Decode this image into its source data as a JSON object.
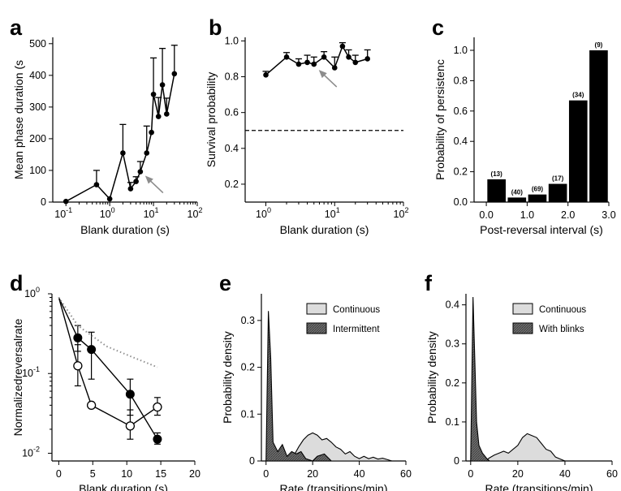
{
  "colors": {
    "ink": "#000000",
    "arrow": "#8c8c8c",
    "dotted": "#909090",
    "continuous_fill": "#dcdcdc",
    "intermittent_fill": "#6e6e6e"
  },
  "chart_data": [
    {
      "panel": "a",
      "type": "line",
      "xlabel": "Blank duration (s)",
      "ylabel": "Mean phase duration (s",
      "xscale": "log",
      "xlim": [
        0.05,
        100
      ],
      "ylim": [
        0,
        520
      ],
      "xticks": [
        {
          "base": "10",
          "exp": "-1"
        },
        {
          "base": "10",
          "exp": "0"
        },
        {
          "base": "10",
          "exp": "1"
        },
        {
          "base": "10",
          "exp": "2"
        }
      ],
      "yticks": [
        "0",
        "100",
        "200",
        "300",
        "400",
        "500"
      ],
      "points": [
        {
          "x": 0.1,
          "y": 2,
          "err": 0
        },
        {
          "x": 0.5,
          "y": 55,
          "err": 45
        },
        {
          "x": 1.0,
          "y": 10,
          "err": 0
        },
        {
          "x": 2.0,
          "y": 155,
          "err": 90
        },
        {
          "x": 3.0,
          "y": 42,
          "err": 20
        },
        {
          "x": 4.0,
          "y": 65,
          "err": 15
        },
        {
          "x": 5.0,
          "y": 96,
          "err": 32
        },
        {
          "x": 7.0,
          "y": 155,
          "err": 85
        },
        {
          "x": 9.0,
          "y": 220,
          "err": 0
        },
        {
          "x": 10.0,
          "y": 340,
          "err": 115
        },
        {
          "x": 13.0,
          "y": 270,
          "err": 60
        },
        {
          "x": 16.0,
          "y": 370,
          "err": 115
        },
        {
          "x": 20.0,
          "y": 278,
          "err": 50
        },
        {
          "x": 30.0,
          "y": 405,
          "err": 90
        }
      ],
      "arrow_at": {
        "x": 5.0,
        "y": 96
      }
    },
    {
      "panel": "b",
      "type": "line",
      "xlabel": "Blank duration (s)",
      "ylabel": "Survival probability",
      "xscale": "log",
      "xlim": [
        0.5,
        100
      ],
      "ylim": [
        0.1,
        1.02
      ],
      "xticks": [
        {
          "base": "10",
          "exp": "0"
        },
        {
          "base": "10",
          "exp": "1"
        },
        {
          "base": "10",
          "exp": "2"
        }
      ],
      "yticks": [
        "0.2",
        "0.4",
        "0.6",
        "0.8",
        "1.0"
      ],
      "points": [
        {
          "x": 1.0,
          "y": 0.81,
          "err": 0.02
        },
        {
          "x": 2.0,
          "y": 0.91,
          "err": 0.025
        },
        {
          "x": 3.0,
          "y": 0.87,
          "err": 0.03
        },
        {
          "x": 4.0,
          "y": 0.88,
          "err": 0.04
        },
        {
          "x": 5.0,
          "y": 0.87,
          "err": 0.04
        },
        {
          "x": 7.0,
          "y": 0.91,
          "err": 0.03
        },
        {
          "x": 10.0,
          "y": 0.85,
          "err": 0.06
        },
        {
          "x": 13.0,
          "y": 0.97,
          "err": 0.02
        },
        {
          "x": 16.0,
          "y": 0.91,
          "err": 0.04
        },
        {
          "x": 20.0,
          "y": 0.88,
          "err": 0.04
        },
        {
          "x": 30.0,
          "y": 0.9,
          "err": 0.05
        }
      ],
      "dashed_y": 0.5,
      "arrow_at": {
        "x": 5.0,
        "y": 0.87
      }
    },
    {
      "panel": "c",
      "type": "bar",
      "xlabel": "Post-reversal interval (s)",
      "ylabel": "Probability of persistenc",
      "xlim": [
        -0.3,
        3.0
      ],
      "ylim": [
        0,
        1.0
      ],
      "xticks": [
        "0.0",
        "1.0",
        "2.0",
        "3.0"
      ],
      "yticks": [
        "0.0",
        "0.2",
        "0.4",
        "0.6",
        "0.8",
        "1.0"
      ],
      "bars": [
        {
          "x": 0.25,
          "value": 0.15,
          "n": "(13)"
        },
        {
          "x": 0.75,
          "value": 0.03,
          "n": "(40)"
        },
        {
          "x": 1.25,
          "value": 0.05,
          "n": "(69)"
        },
        {
          "x": 1.75,
          "value": 0.12,
          "n": "(17)"
        },
        {
          "x": 2.25,
          "value": 0.67,
          "n": "(34)"
        },
        {
          "x": 2.75,
          "value": 1.0,
          "n": "(9)"
        }
      ]
    },
    {
      "panel": "d",
      "type": "line",
      "xlabel": "Blank duration (s)",
      "ylabel": "Normalizedreversalrate",
      "yscale": "log",
      "xlim": [
        -1,
        20
      ],
      "ylim": [
        0.008,
        1.0
      ],
      "xticks": [
        "0",
        "5",
        "10",
        "15",
        "20"
      ],
      "yticks": [
        {
          "base": "10",
          "exp": "0"
        },
        {
          "base": "10",
          "exp": "-1"
        },
        {
          "base": "10",
          "exp": "-2"
        }
      ],
      "series": [
        {
          "style": "filled",
          "points": [
            {
              "x": 0,
              "y": 0.9,
              "lo": 0,
              "hi": 0
            },
            {
              "x": 2.8,
              "y": 0.28,
              "lo": 0.19,
              "hi": 0.4
            },
            {
              "x": 4.8,
              "y": 0.2,
              "lo": 0.085,
              "hi": 0.33
            },
            {
              "x": 10.5,
              "y": 0.055,
              "lo": 0.03,
              "hi": 0.085
            },
            {
              "x": 14.5,
              "y": 0.015,
              "lo": 0.013,
              "hi": 0.018
            }
          ]
        },
        {
          "style": "open",
          "points": [
            {
              "x": 0,
              "y": 0.9,
              "lo": 0,
              "hi": 0
            },
            {
              "x": 2.8,
              "y": 0.125,
              "lo": 0.07,
              "hi": 0.23
            },
            {
              "x": 4.8,
              "y": 0.04,
              "lo": 0.04,
              "hi": 0.04
            },
            {
              "x": 10.5,
              "y": 0.022,
              "lo": 0.015,
              "hi": 0.035
            },
            {
              "x": 14.5,
              "y": 0.038,
              "lo": 0.03,
              "hi": 0.05
            }
          ]
        },
        {
          "style": "dotted",
          "points": [
            {
              "x": 0,
              "y": 0.9
            },
            {
              "x": 2.8,
              "y": 0.4
            },
            {
              "x": 4.8,
              "y": 0.3
            },
            {
              "x": 7,
              "y": 0.22
            },
            {
              "x": 10.5,
              "y": 0.165
            },
            {
              "x": 14.5,
              "y": 0.12
            }
          ]
        }
      ]
    },
    {
      "panel": "e",
      "type": "area",
      "xlabel": "Rate (transitions/min)",
      "ylabel": "Probability density",
      "xlim": [
        -2,
        60
      ],
      "ylim": [
        0,
        0.35
      ],
      "xticks": [
        "0",
        "20",
        "40",
        "60"
      ],
      "yticks": [
        "0",
        "0.1",
        "0.2",
        "0.3"
      ],
      "series": [
        {
          "name": "Continuous",
          "points": [
            [
              4,
              0
            ],
            [
              6,
              0.005
            ],
            [
              8,
              0.01
            ],
            [
              10,
              0.008
            ],
            [
              12,
              0.012
            ],
            [
              14,
              0.03
            ],
            [
              16,
              0.045
            ],
            [
              18,
              0.055
            ],
            [
              20,
              0.06
            ],
            [
              22,
              0.055
            ],
            [
              24,
              0.045
            ],
            [
              26,
              0.048
            ],
            [
              28,
              0.04
            ],
            [
              30,
              0.03
            ],
            [
              32,
              0.025
            ],
            [
              34,
              0.015
            ],
            [
              36,
              0.02
            ],
            [
              38,
              0.01
            ],
            [
              40,
              0.005
            ],
            [
              42,
              0.01
            ],
            [
              44,
              0.005
            ],
            [
              46,
              0.008
            ],
            [
              48,
              0.004
            ],
            [
              50,
              0.006
            ],
            [
              52,
              0.003
            ],
            [
              54,
              0.0
            ]
          ]
        },
        {
          "name": "Intermittent",
          "points": [
            [
              0,
              0
            ],
            [
              1,
              0.32
            ],
            [
              2,
              0.22
            ],
            [
              3,
              0.04
            ],
            [
              5,
              0.02
            ],
            [
              7,
              0.035
            ],
            [
              9,
              0.01
            ],
            [
              11,
              0.02
            ],
            [
              13,
              0.015
            ],
            [
              15,
              0.02
            ],
            [
              17,
              0.005
            ],
            [
              20,
              0.0
            ],
            [
              22,
              0.01
            ],
            [
              25,
              0.015
            ],
            [
              28,
              0.0
            ]
          ]
        }
      ]
    },
    {
      "panel": "f",
      "type": "area",
      "xlabel": "Rate (transitions/min)",
      "ylabel": "Probability density",
      "xlim": [
        -2,
        60
      ],
      "ylim": [
        0,
        0.42
      ],
      "xticks": [
        "0",
        "20",
        "40",
        "60"
      ],
      "yticks": [
        "0",
        "0.1",
        "0.2",
        "0.3",
        "0.4"
      ],
      "series": [
        {
          "name": "Continuous",
          "points": [
            [
              6,
              0
            ],
            [
              8,
              0.008
            ],
            [
              10,
              0.015
            ],
            [
              12,
              0.02
            ],
            [
              14,
              0.025
            ],
            [
              16,
              0.02
            ],
            [
              18,
              0.03
            ],
            [
              20,
              0.04
            ],
            [
              22,
              0.06
            ],
            [
              24,
              0.07
            ],
            [
              26,
              0.065
            ],
            [
              28,
              0.06
            ],
            [
              30,
              0.045
            ],
            [
              32,
              0.03
            ],
            [
              34,
              0.025
            ],
            [
              36,
              0.01
            ],
            [
              38,
              0.005
            ],
            [
              40,
              0.0
            ]
          ]
        },
        {
          "name": "With blinks",
          "points": [
            [
              0,
              0
            ],
            [
              1,
              0.42
            ],
            [
              1.8,
              0.25
            ],
            [
              2.5,
              0.1
            ],
            [
              3.5,
              0.04
            ],
            [
              5,
              0.02
            ],
            [
              7,
              0.005
            ],
            [
              8,
              0.0
            ]
          ]
        }
      ]
    }
  ]
}
